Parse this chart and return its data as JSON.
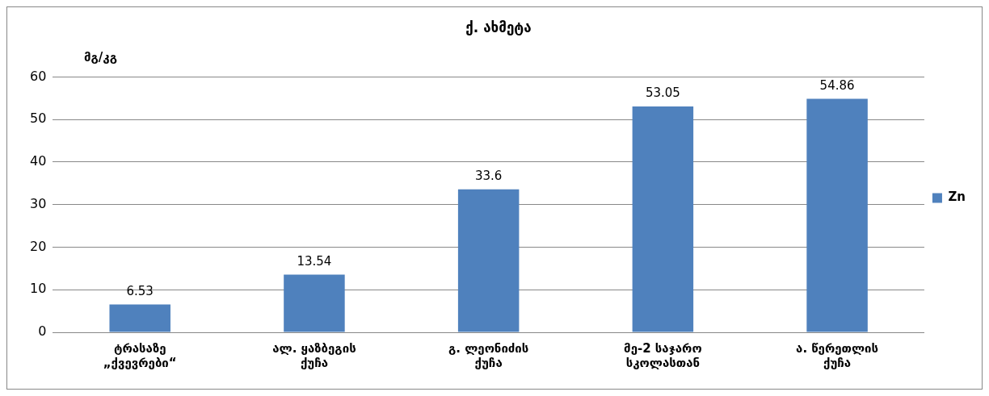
{
  "chart_data": {
    "type": "bar",
    "title": "ქ. ახმეტა",
    "ylabel": "მგ/კგ",
    "categories": [
      "ტრასაზე „ქვევრები“",
      "ალ. ყაზბეგის ქუჩა",
      "გ. ლეონიძის ქუჩა",
      "მე-2 საჯარო სკოლასთან",
      "ა. წერეთლის ქუჩა"
    ],
    "series": [
      {
        "name": "Zn",
        "color": "#4f81bd",
        "values": [
          6.53,
          13.54,
          33.6,
          53.05,
          54.86
        ]
      }
    ],
    "ylim": [
      0,
      60
    ],
    "yticks": [
      0,
      10,
      20,
      30,
      40,
      50,
      60
    ],
    "grid": "y",
    "legend": "right",
    "data_labels": true
  }
}
